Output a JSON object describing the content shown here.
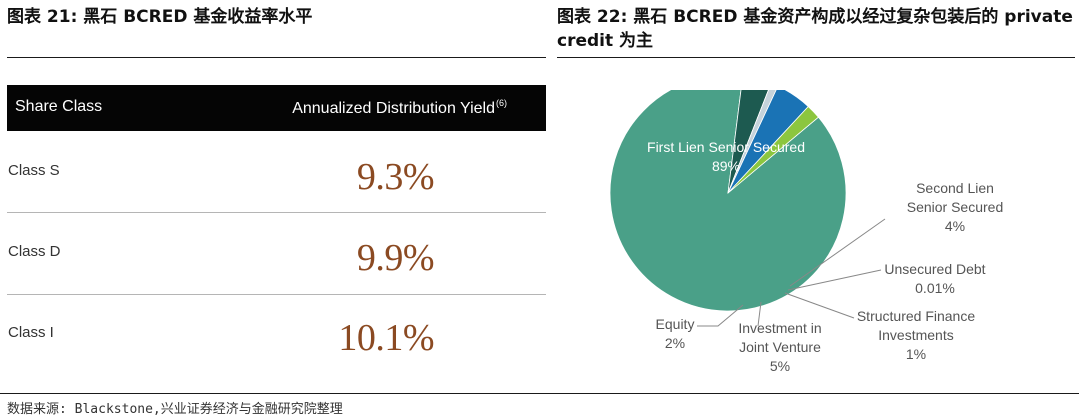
{
  "left_title": "图表 21: 黑石 BCRED 基金收益率水平",
  "right_title": "图表 22: 黑石 BCRED 基金资产构成以经过复杂包装后的 private credit 为主",
  "source": "数据来源: Blackstone,兴业证券经济与金融研究院整理",
  "colors": {
    "table_header_bg": "#050505",
    "yield_value": "#8b4a22",
    "first_lien": "#4aa088",
    "second_lien": "#1d5a50",
    "unsecured": "#3d6d78",
    "structured_finance": "#c5d3db",
    "jv": "#1a73b5",
    "equity": "#8cc63f"
  },
  "chart_data": [
    {
      "type": "table",
      "columns": [
        "Share Class",
        "Annualized Distribution Yield"
      ],
      "column_footnote": "(6)",
      "rows": [
        {
          "label": "Class S",
          "value": "9.3%"
        },
        {
          "label": "Class D",
          "value": "9.9%"
        },
        {
          "label": "Class I",
          "value": "10.1%"
        }
      ]
    },
    {
      "type": "pie",
      "slices": [
        {
          "name": "First Lien Senior Secured",
          "value": 89,
          "label_lines": [
            "First Lien Senior Secured",
            "89%"
          ],
          "color": "#4aa088"
        },
        {
          "name": "Second Lien Senior Secured",
          "value": 4,
          "label_lines": [
            "Second Lien",
            "Senior Secured",
            "4%"
          ],
          "color": "#1d5a50"
        },
        {
          "name": "Unsecured Debt",
          "value": 0.01,
          "label_lines": [
            "Unsecured Debt",
            "0.01%"
          ],
          "color": "#3d6d78"
        },
        {
          "name": "Structured Finance Investments",
          "value": 1,
          "label_lines": [
            "Structured Finance",
            "Investments",
            "1%"
          ],
          "color": "#c5d3db"
        },
        {
          "name": "Investment in Joint Venture",
          "value": 5,
          "label_lines": [
            "Investment in",
            "Joint Venture",
            "5%"
          ],
          "color": "#1a73b5"
        },
        {
          "name": "Equity",
          "value": 2,
          "label_lines": [
            "Equity",
            "2%"
          ],
          "color": "#8cc63f"
        }
      ]
    }
  ]
}
